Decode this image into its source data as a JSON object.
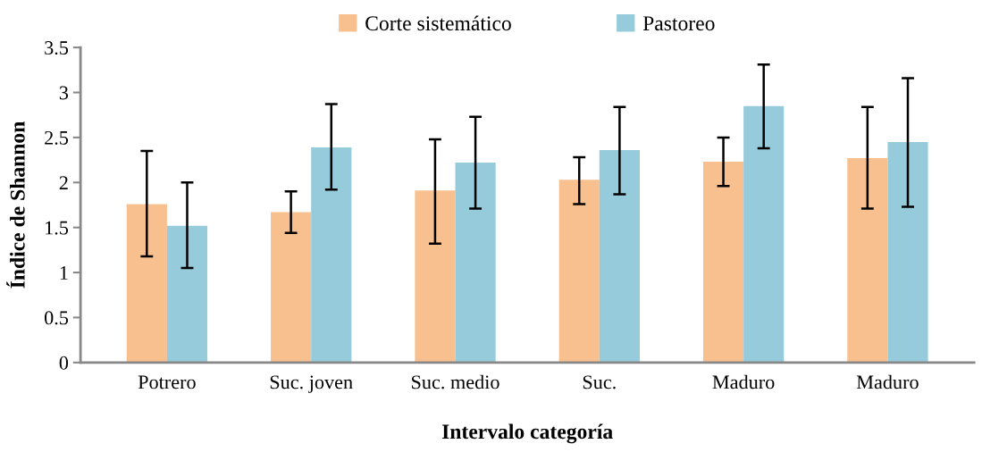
{
  "chart_data": {
    "type": "bar",
    "xlabel": "Intervalo categoría",
    "ylabel": "Índice de Shannon",
    "categories": [
      "Potrero",
      "Suc. joven",
      "Suc. medio",
      "Suc.",
      "Maduro",
      "Maduro"
    ],
    "series": [
      {
        "name": "Corte sistemático",
        "color": "#f9c08f",
        "values": [
          1.76,
          1.67,
          1.91,
          2.03,
          2.23,
          2.27
        ],
        "errors": [
          [
            1.18,
            2.35
          ],
          [
            1.44,
            1.9
          ],
          [
            1.32,
            2.48
          ],
          [
            1.76,
            2.28
          ],
          [
            1.96,
            2.5
          ],
          [
            1.71,
            2.84
          ]
        ]
      },
      {
        "name": "Pastoreo",
        "color": "#96cbdc",
        "values": [
          1.52,
          2.39,
          2.22,
          2.36,
          2.85,
          2.45
        ],
        "errors": [
          [
            1.05,
            2.0
          ],
          [
            1.92,
            2.87
          ],
          [
            1.71,
            2.73
          ],
          [
            1.87,
            2.84
          ],
          [
            2.38,
            3.31
          ],
          [
            1.73,
            3.16
          ]
        ]
      }
    ],
    "ylim": [
      0,
      3.5
    ],
    "yticks": [
      0,
      0.5,
      1,
      1.5,
      2,
      2.5,
      3,
      3.5
    ],
    "grid": false,
    "legend": "top"
  }
}
